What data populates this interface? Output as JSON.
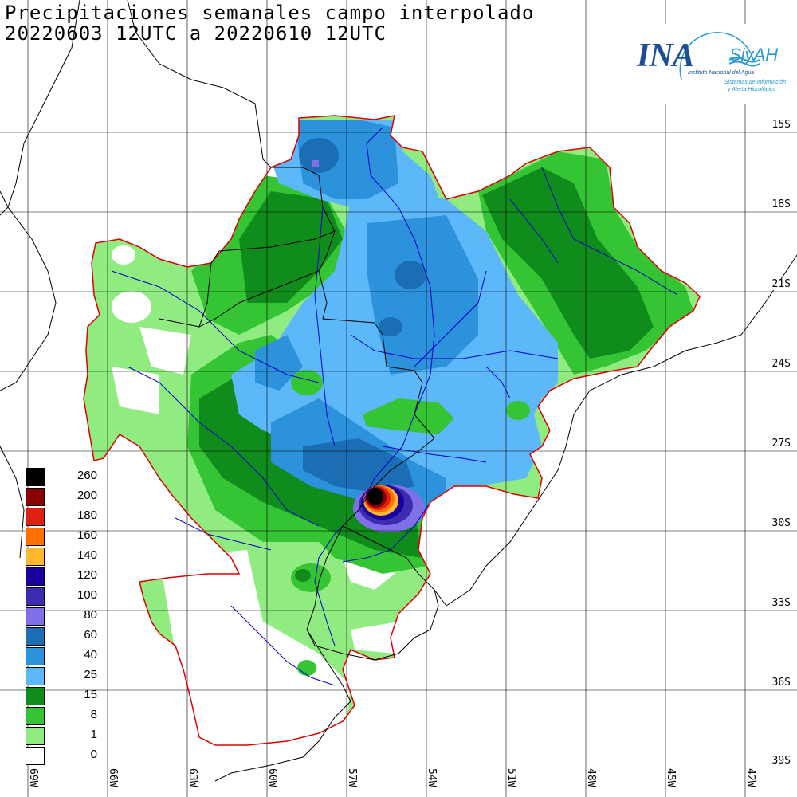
{
  "title": {
    "line1": "Precipitaciones semanales campo interpolado",
    "line2": "20220603 12UTC a 20220610 12UTC"
  },
  "logo": {
    "name": "INA",
    "system": "SiyAH",
    "institution": "Instituto Nacional del Agua",
    "system_desc_1": "Sistemas de Información",
    "system_desc_2": "y Alerta Hidrológico",
    "colors": {
      "primary": "#1d4f95",
      "secondary": "#2a9ad6"
    }
  },
  "map": {
    "lat_labels": [
      "15S",
      "18S",
      "21S",
      "24S",
      "27S",
      "30S",
      "33S",
      "36S",
      "39S"
    ],
    "lon_labels": [
      "69W",
      "66W",
      "63W",
      "60W",
      "57W",
      "54W",
      "51W",
      "48W",
      "45W",
      "42W"
    ],
    "basin_outline_color": "#dd0000",
    "river_color": "#0000cc",
    "border_color": "#000000"
  },
  "legend": {
    "items": [
      {
        "label": "260",
        "color": "#000000"
      },
      {
        "label": "200",
        "color": "#8b0000"
      },
      {
        "label": "180",
        "color": "#e02010"
      },
      {
        "label": "160",
        "color": "#ff7000"
      },
      {
        "label": "140",
        "color": "#ffb830"
      },
      {
        "label": "120",
        "color": "#1800a0"
      },
      {
        "label": "100",
        "color": "#3c2cb0"
      },
      {
        "label": "80",
        "color": "#8070e8"
      },
      {
        "label": "60",
        "color": "#1c6eb4"
      },
      {
        "label": "40",
        "color": "#2c92dc"
      },
      {
        "label": "25",
        "color": "#5cb8f8"
      },
      {
        "label": "15",
        "color": "#108c1c"
      },
      {
        "label": "8",
        "color": "#34c434"
      },
      {
        "label": "1",
        "color": "#90ec80"
      },
      {
        "label": "0",
        "color": "#ffffff"
      }
    ]
  }
}
